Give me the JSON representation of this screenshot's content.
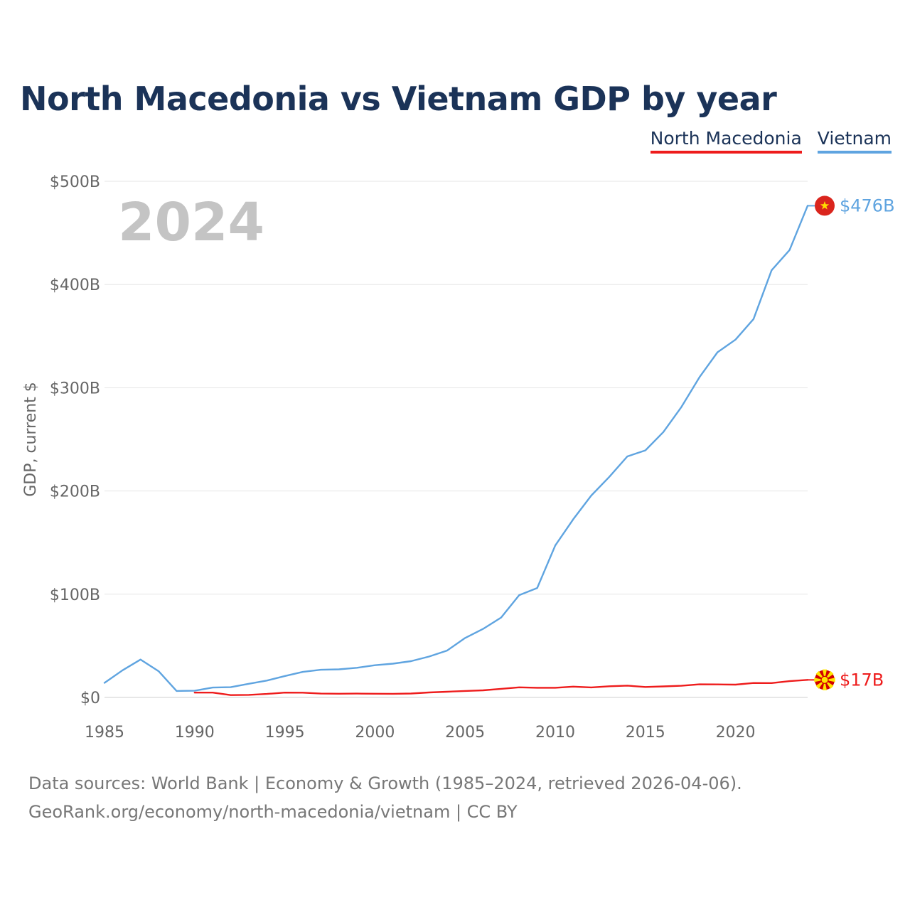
{
  "chart_data": {
    "type": "line",
    "title": "North Macedonia vs Vietnam GDP by year",
    "ylabel": "GDP, current $",
    "xlabel": "",
    "year_display": "2024",
    "xlim": [
      1985,
      2024
    ],
    "ylim": [
      0,
      500
    ],
    "x_ticks": [
      1985,
      1990,
      1995,
      2000,
      2005,
      2010,
      2015,
      2020
    ],
    "y_ticks": [
      {
        "value": 0,
        "label": "$0"
      },
      {
        "value": 100,
        "label": "$100B"
      },
      {
        "value": 200,
        "label": "$200B"
      },
      {
        "value": 300,
        "label": "$300B"
      },
      {
        "value": 400,
        "label": "$400B"
      },
      {
        "value": 500,
        "label": "$500B"
      }
    ],
    "grid": true,
    "legend_position": "top-right",
    "series": [
      {
        "name": "North Macedonia",
        "color": "#ee1c1c",
        "end_label": "$17B",
        "flag": "north-macedonia-flag-icon",
        "x": [
          1990,
          1991,
          1992,
          1993,
          1994,
          1995,
          1996,
          1997,
          1998,
          1999,
          2000,
          2001,
          2002,
          2003,
          2004,
          2005,
          2006,
          2007,
          2008,
          2009,
          2010,
          2011,
          2012,
          2013,
          2014,
          2015,
          2016,
          2017,
          2018,
          2019,
          2020,
          2021,
          2022,
          2023,
          2024
        ],
        "values": [
          4.7,
          4.7,
          2.3,
          2.5,
          3.4,
          4.7,
          4.6,
          3.7,
          3.6,
          3.7,
          3.6,
          3.5,
          3.8,
          4.8,
          5.5,
          6.3,
          6.9,
          8.3,
          9.8,
          9.4,
          9.4,
          10.5,
          9.7,
          10.8,
          11.4,
          10.1,
          10.7,
          11.3,
          12.7,
          12.6,
          12.4,
          14.0,
          13.9,
          15.8,
          17.0
        ]
      },
      {
        "name": "Vietnam",
        "color": "#5fa4e0",
        "end_label": "$476B",
        "flag": "vietnam-flag-icon",
        "x": [
          1985,
          1986,
          1987,
          1988,
          1989,
          1990,
          1991,
          1992,
          1993,
          1994,
          1995,
          1996,
          1997,
          1998,
          1999,
          2000,
          2001,
          2002,
          2003,
          2004,
          2005,
          2006,
          2007,
          2008,
          2009,
          2010,
          2011,
          2012,
          2013,
          2014,
          2015,
          2016,
          2017,
          2018,
          2019,
          2020,
          2021,
          2022,
          2023,
          2024
        ],
        "values": [
          14.1,
          26.3,
          36.7,
          25.4,
          6.3,
          6.5,
          9.6,
          9.9,
          13.2,
          16.3,
          20.7,
          24.7,
          26.8,
          27.2,
          28.7,
          31.2,
          32.7,
          35.1,
          39.6,
          45.4,
          57.6,
          66.4,
          77.4,
          99.1,
          106.0,
          147.2,
          172.6,
          195.6,
          213.7,
          233.5,
          239.3,
          257.1,
          281.4,
          310.1,
          334.4,
          346.6,
          366.5,
          413.8,
          433.4,
          476.3
        ]
      }
    ]
  },
  "legend": {
    "north_macedonia": "North Macedonia",
    "vietnam": "Vietnam"
  },
  "footer": {
    "line1": "Data sources: World Bank | Economy & Growth (1985–2024, retrieved 2026-04-06).",
    "line2": "GeoRank.org/economy/north-macedonia/vietnam | CC BY"
  }
}
